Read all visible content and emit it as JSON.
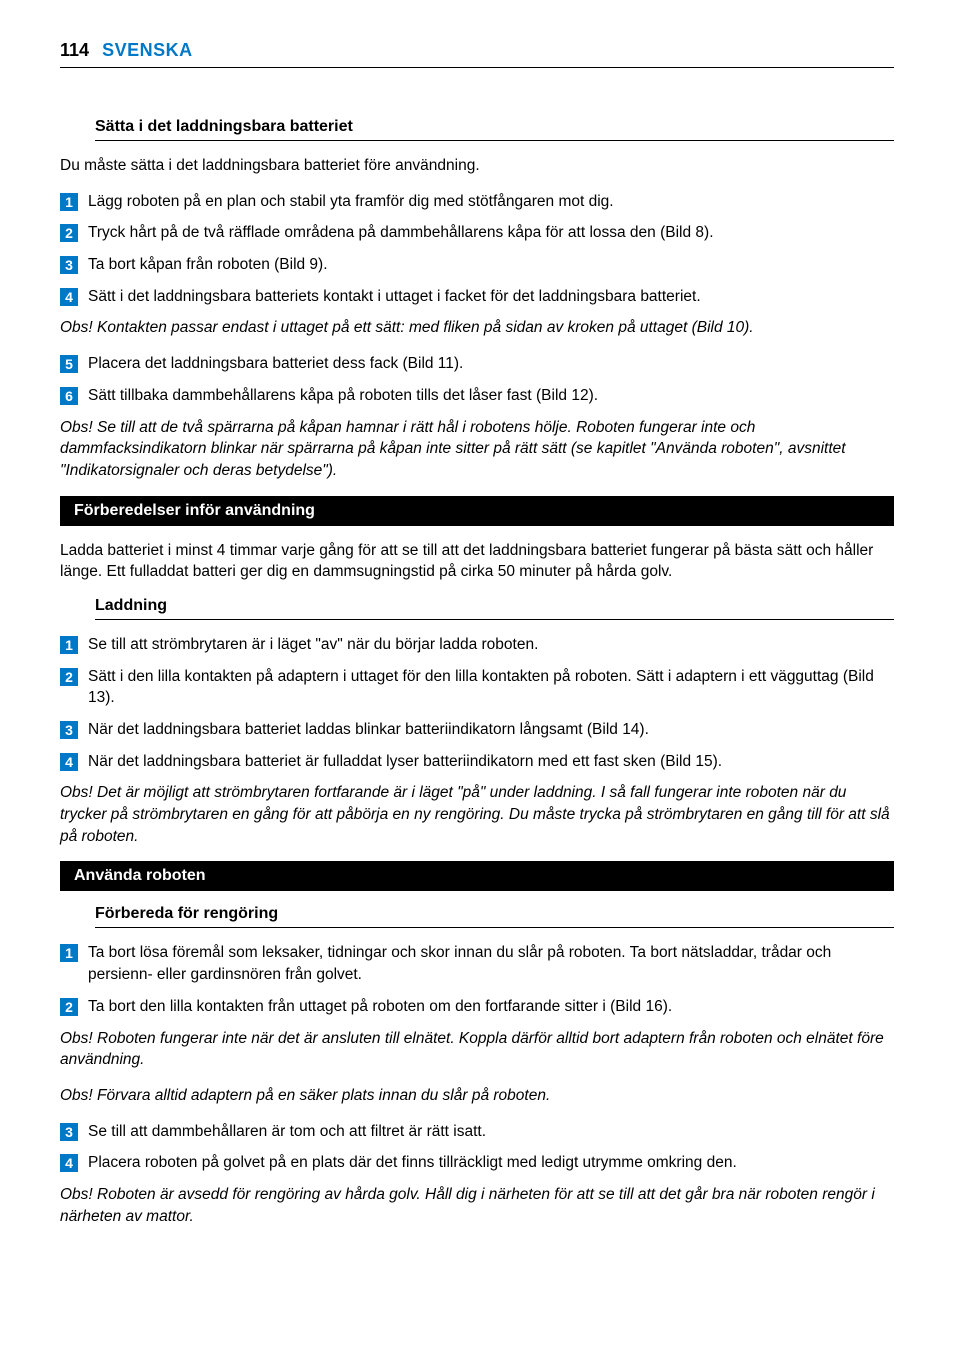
{
  "page": {
    "number": "114",
    "language": "SVENSKA"
  },
  "section1": {
    "heading": "Sätta i det laddningsbara batteriet",
    "intro": "Du måste sätta i det laddningsbara batteriet före användning.",
    "steps": [
      "Lägg roboten på en plan och stabil yta framför dig med stötfångaren mot dig.",
      "Tryck hårt på de två räfflade områdena på dammbehållarens kåpa för att lossa den (Bild 8).",
      "Ta bort kåpan från roboten (Bild 9).",
      "Sätt i det laddningsbara batteriets kontakt i uttaget i facket för det laddningsbara batteriet."
    ],
    "note1": "Obs! Kontakten passar endast i uttaget på ett sätt: med fliken på sidan av kroken på uttaget (Bild 10).",
    "steps2": [
      "Placera det laddningsbara batteriet dess fack (Bild 11).",
      "Sätt tillbaka dammbehållarens kåpa på roboten tills det låser fast (Bild 12)."
    ],
    "note2": "Obs! Se till att de två spärrarna på kåpan hamnar i rätt hål i robotens hölje. Roboten fungerar inte och dammfacksindikatorn blinkar när spärrarna på kåpan inte sitter på rätt sätt (se kapitlet \"Använda roboten\", avsnittet \"Indikatorsignaler och deras betydelse\")."
  },
  "section2": {
    "bar": "Förberedelser inför användning",
    "intro": "Ladda batteriet i minst 4 timmar varje gång för att se till att det laddningsbara batteriet fungerar på bästa sätt och håller länge. Ett fulladdat batteri ger dig en dammsugningstid på cirka 50 minuter på hårda golv.",
    "heading": "Laddning",
    "steps": [
      "Se till att strömbrytaren är i läget \"av\" när du börjar ladda roboten.",
      "Sätt i den lilla kontakten på adaptern i uttaget för den lilla kontakten på roboten. Sätt i adaptern i ett vägguttag (Bild 13).",
      "När det laddningsbara batteriet laddas blinkar batteriindikatorn långsamt (Bild 14).",
      "När det laddningsbara batteriet är fulladdat lyser batteriindikatorn med ett fast sken (Bild 15)."
    ],
    "note": "Obs! Det är möjligt att strömbrytaren fortfarande är i läget \"på\" under laddning. I så fall fungerar inte roboten när du trycker på strömbrytaren en gång för att påbörja en ny rengöring. Du måste trycka på strömbrytaren en gång till för att slå på roboten."
  },
  "section3": {
    "bar": "Använda roboten",
    "heading": "Förbereda för rengöring",
    "steps1": [
      "Ta bort lösa föremål som leksaker, tidningar och skor innan du slår på roboten. Ta bort nätsladdar, trådar och persienn- eller gardinsnören från golvet.",
      "Ta bort den lilla kontakten från uttaget på roboten om den fortfarande sitter i (Bild 16)."
    ],
    "note1": "Obs! Roboten fungerar inte när det är ansluten till elnätet. Koppla därför alltid bort adaptern från roboten och elnätet före användning.",
    "note2": "Obs! Förvara alltid adaptern på en säker plats innan du slår på roboten.",
    "steps2": [
      "Se till att dammbehållaren är tom och att filtret är rätt isatt.",
      "Placera roboten på golvet på en plats där det finns tillräckligt med ledigt utrymme omkring den."
    ],
    "note3": "Obs! Roboten är avsedd för rengöring av hårda golv. Håll dig i närheten för att se till att det går bra när roboten rengör i närheten av mattor."
  },
  "colors": {
    "accent": "#0078c8",
    "text": "#000000",
    "bg": "#ffffff",
    "barBg": "#000000",
    "barText": "#ffffff"
  }
}
